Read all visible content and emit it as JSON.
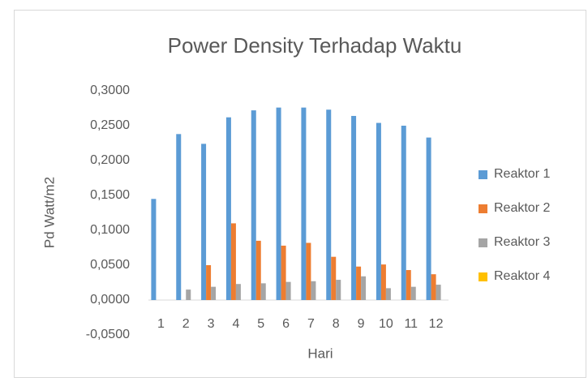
{
  "chart_data": {
    "type": "bar",
    "title": "Power Density Terhadap Waktu",
    "x_label": "Hari",
    "y_label": "Pd Watt/m2",
    "categories": [
      "1",
      "2",
      "3",
      "4",
      "5",
      "6",
      "7",
      "8",
      "9",
      "10",
      "11",
      "12"
    ],
    "series": [
      {
        "name": "Reaktor 1",
        "color": "#5b9bd5",
        "values": [
          0.145,
          0.238,
          0.224,
          0.262,
          0.272,
          0.276,
          0.276,
          0.273,
          0.264,
          0.254,
          0.25,
          0.233
        ]
      },
      {
        "name": "Reaktor 2",
        "color": "#ed7d31",
        "values": [
          null,
          null,
          0.05,
          0.11,
          0.085,
          0.078,
          0.082,
          0.062,
          0.048,
          0.051,
          0.043,
          0.037
        ]
      },
      {
        "name": "Reaktor 3",
        "color": "#a5a5a5",
        "values": [
          null,
          0.015,
          0.019,
          0.023,
          0.024,
          0.026,
          0.027,
          0.029,
          0.034,
          0.017,
          0.019,
          0.022
        ]
      },
      {
        "name": "Reaktor 4",
        "color": "#ffc000",
        "values": [
          null,
          null,
          null,
          null,
          null,
          null,
          null,
          null,
          null,
          null,
          null,
          null
        ]
      }
    ],
    "ylim": [
      -0.05,
      0.3
    ],
    "yticks": [
      {
        "value": -0.05,
        "label": "-0,0500"
      },
      {
        "value": 0,
        "label": "0,0000"
      },
      {
        "value": 0.05,
        "label": "0,0500"
      },
      {
        "value": 0.1,
        "label": "0,1000"
      },
      {
        "value": 0.15,
        "label": "0,1500"
      },
      {
        "value": 0.2,
        "label": "0,2000"
      },
      {
        "value": 0.25,
        "label": "0,2500"
      },
      {
        "value": 0.3,
        "label": "0,3000"
      }
    ],
    "grid": false,
    "legend": "right"
  }
}
